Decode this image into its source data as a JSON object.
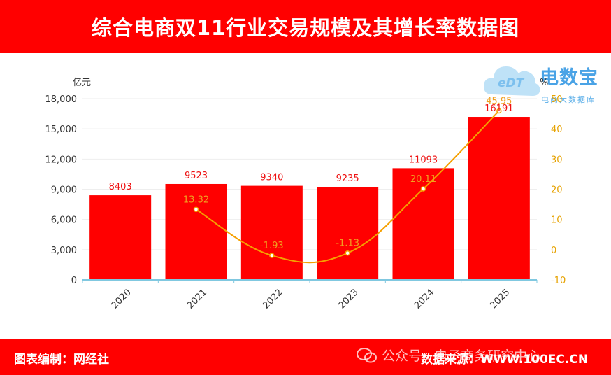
{
  "header": {
    "title": "综合电商双11行业交易规模及其增长率数据图"
  },
  "footer": {
    "left": "图表编制：网经社",
    "watermark": "公众号 · 电子商务研究中心",
    "right": "数据来源：WWW.100EC.CN"
  },
  "logo": {
    "name": "电数宝",
    "sub": "电商大数据库",
    "mark": "eDT"
  },
  "chart_data": {
    "type": "bar",
    "categories": [
      "2020",
      "2021",
      "2022",
      "2023",
      "2024",
      "2025"
    ],
    "series": [
      {
        "type": "bar",
        "axis": "left",
        "values": [
          8403,
          9523,
          9340,
          9235,
          11093,
          16191
        ]
      },
      {
        "type": "line",
        "axis": "right",
        "values": [
          null,
          13.32,
          -1.93,
          -1.13,
          20.11,
          45.95
        ]
      }
    ],
    "bar_labels": [
      "8403",
      "9523",
      "9340",
      "9235",
      "11093",
      "16191"
    ],
    "line_labels": [
      "",
      "13.32",
      "-1.93",
      "-1.13",
      "20.11",
      "45.95"
    ],
    "ylabel": "亿元",
    "y2label": "%",
    "ylim": [
      0,
      18000
    ],
    "y2lim": [
      -10,
      50
    ],
    "yticks": [
      "0",
      "3,000",
      "6,000",
      "9,000",
      "12,000",
      "15,000",
      "18,000"
    ],
    "y2ticks": [
      "-10",
      "0",
      "10",
      "20",
      "30",
      "40",
      "50"
    ],
    "colors": {
      "bar": "#ff0000",
      "line": "#f5a000",
      "axis": "#80c8e0",
      "grid": "#eeeeee"
    },
    "grid": true
  }
}
